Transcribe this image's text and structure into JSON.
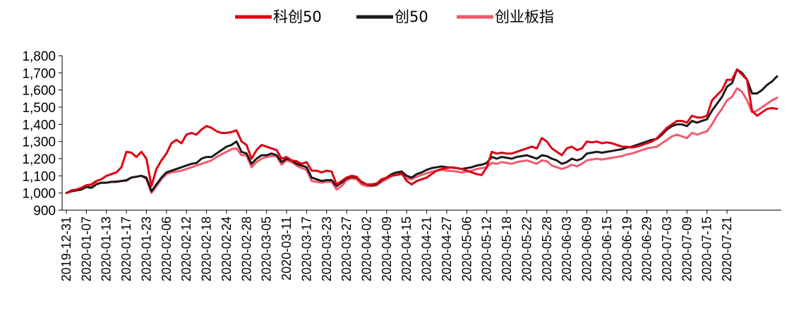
{
  "chart_data": {
    "type": "line",
    "title": "",
    "xlabel": "",
    "ylabel": "",
    "ylim": [
      900,
      1800
    ],
    "yticks": [
      900,
      1000,
      1100,
      1200,
      1300,
      1400,
      1500,
      1600,
      1700,
      1800
    ],
    "ytick_labels": [
      "900",
      "1,000",
      "1,100",
      "1,200",
      "1,300",
      "1,400",
      "1,500",
      "1,600",
      "1,700",
      "1,800"
    ],
    "xtick_labels": [
      "2019-12-31",
      "2020-01-07",
      "2020-01-13",
      "2020-01-17",
      "2020-01-23",
      "2020-02-06",
      "2020-02-12",
      "2020-02-18",
      "2020-02-24",
      "2020-02-28",
      "2020-03-05",
      "2020-03-11",
      "2020-03-17",
      "2020-03-23",
      "2020-03-27",
      "2020-04-02",
      "2020-04-09",
      "2020-04-15",
      "2020-04-21",
      "2020-04-27",
      "2020-05-06",
      "2020-05-12",
      "2020-05-18",
      "2020-05-22",
      "2020-05-28",
      "2020-06-03",
      "2020-06-09",
      "2020-06-15",
      "2020-06-19",
      "2020-06-29",
      "2020-07-03",
      "2020-07-09",
      "2020-07-15",
      "2020-07-21"
    ],
    "tick_every": 4,
    "grid": false,
    "legend_position": "top-center",
    "series": [
      {
        "name": "科创50",
        "color": "#E00012",
        "values": [
          1000,
          1015,
          1020,
          1030,
          1045,
          1050,
          1070,
          1080,
          1100,
          1110,
          1120,
          1150,
          1240,
          1235,
          1210,
          1240,
          1200,
          1040,
          1140,
          1190,
          1230,
          1290,
          1310,
          1290,
          1340,
          1350,
          1340,
          1370,
          1390,
          1380,
          1360,
          1350,
          1350,
          1355,
          1365,
          1300,
          1280,
          1200,
          1250,
          1280,
          1270,
          1260,
          1250,
          1200,
          1210,
          1190,
          1185,
          1170,
          1180,
          1130,
          1130,
          1120,
          1130,
          1125,
          1050,
          1070,
          1090,
          1100,
          1095,
          1060,
          1050,
          1050,
          1055,
          1080,
          1090,
          1100,
          1105,
          1115,
          1070,
          1050,
          1070,
          1080,
          1090,
          1110,
          1130,
          1140,
          1145,
          1150,
          1145,
          1140,
          1130,
          1120,
          1110,
          1105,
          1150,
          1240,
          1230,
          1235,
          1230,
          1230,
          1240,
          1250,
          1260,
          1270,
          1260,
          1320,
          1300,
          1260,
          1240,
          1220,
          1260,
          1270,
          1250,
          1260,
          1300,
          1295,
          1300,
          1290,
          1295,
          1290,
          1280,
          1270,
          1270,
          1265,
          1270,
          1280,
          1290,
          1300,
          1320,
          1350,
          1380,
          1400,
          1420,
          1420,
          1410,
          1450,
          1440,
          1440,
          1450,
          1540,
          1570,
          1600,
          1660,
          1660,
          1720,
          1690,
          1660,
          1480,
          1450,
          1470,
          1490,
          1495,
          1490
        ]
      },
      {
        "name": "创50",
        "color": "#1A1A1A",
        "values": [
          1000,
          1010,
          1015,
          1020,
          1035,
          1030,
          1050,
          1060,
          1060,
          1065,
          1065,
          1070,
          1075,
          1090,
          1095,
          1100,
          1090,
          1010,
          1050,
          1090,
          1120,
          1130,
          1140,
          1150,
          1160,
          1170,
          1175,
          1200,
          1210,
          1210,
          1230,
          1250,
          1270,
          1280,
          1300,
          1240,
          1230,
          1170,
          1200,
          1220,
          1220,
          1230,
          1220,
          1180,
          1200,
          1190,
          1170,
          1160,
          1150,
          1090,
          1080,
          1070,
          1075,
          1075,
          1040,
          1060,
          1085,
          1095,
          1090,
          1065,
          1050,
          1045,
          1050,
          1075,
          1090,
          1110,
          1120,
          1125,
          1100,
          1090,
          1110,
          1120,
          1135,
          1145,
          1150,
          1155,
          1150,
          1148,
          1145,
          1140,
          1145,
          1150,
          1160,
          1165,
          1175,
          1210,
          1200,
          1210,
          1205,
          1200,
          1210,
          1215,
          1220,
          1210,
          1200,
          1220,
          1215,
          1200,
          1190,
          1170,
          1180,
          1200,
          1190,
          1200,
          1230,
          1235,
          1240,
          1235,
          1240,
          1245,
          1250,
          1255,
          1265,
          1270,
          1280,
          1290,
          1300,
          1310,
          1315,
          1340,
          1370,
          1390,
          1400,
          1400,
          1390,
          1420,
          1410,
          1420,
          1430,
          1480,
          1520,
          1560,
          1620,
          1640,
          1720,
          1700,
          1660,
          1580,
          1580,
          1600,
          1630,
          1650,
          1680
        ]
      },
      {
        "name": "创业板指",
        "color": "#F05A6E",
        "values": [
          1000,
          1010,
          1015,
          1020,
          1040,
          1035,
          1055,
          1060,
          1060,
          1065,
          1068,
          1070,
          1070,
          1090,
          1095,
          1100,
          1080,
          1000,
          1040,
          1080,
          1110,
          1120,
          1125,
          1130,
          1140,
          1150,
          1160,
          1170,
          1180,
          1190,
          1210,
          1225,
          1240,
          1255,
          1260,
          1220,
          1220,
          1150,
          1180,
          1200,
          1210,
          1215,
          1215,
          1165,
          1190,
          1180,
          1160,
          1145,
          1135,
          1070,
          1065,
          1060,
          1065,
          1065,
          1020,
          1040,
          1075,
          1085,
          1080,
          1050,
          1040,
          1040,
          1045,
          1065,
          1080,
          1100,
          1105,
          1110,
          1085,
          1080,
          1095,
          1105,
          1115,
          1125,
          1130,
          1135,
          1130,
          1128,
          1125,
          1120,
          1125,
          1130,
          1140,
          1145,
          1150,
          1175,
          1170,
          1180,
          1175,
          1170,
          1180,
          1185,
          1190,
          1180,
          1170,
          1190,
          1185,
          1160,
          1150,
          1140,
          1150,
          1165,
          1155,
          1170,
          1190,
          1195,
          1200,
          1195,
          1200,
          1205,
          1210,
          1215,
          1225,
          1230,
          1240,
          1250,
          1260,
          1265,
          1270,
          1290,
          1310,
          1330,
          1340,
          1330,
          1320,
          1350,
          1340,
          1350,
          1360,
          1400,
          1450,
          1490,
          1540,
          1560,
          1610,
          1590,
          1540,
          1470,
          1480,
          1500,
          1520,
          1540,
          1555
        ]
      }
    ]
  }
}
